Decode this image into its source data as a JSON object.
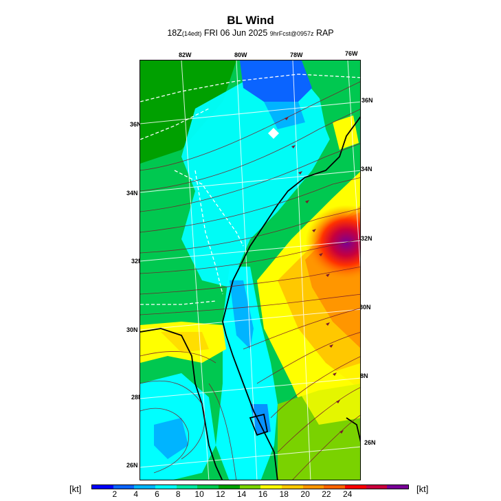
{
  "header": {
    "title": "BL Wind",
    "subtitle_main": "18Z",
    "subtitle_edt": "(14edt)",
    "subtitle_date": " FRI 06 Jun 2025 ",
    "subtitle_fcst": "9hrFcst@0957z",
    "subtitle_model": " RAP"
  },
  "lon_labels": [
    "82W",
    "80W",
    "78W",
    "76W"
  ],
  "lat_labels_left": [
    "36N",
    "34N",
    "32N",
    "30N",
    "28N",
    "26N"
  ],
  "lat_labels_right": [
    "36N",
    "34N",
    "32N",
    "30N",
    "28N",
    "26N"
  ],
  "colorbar": {
    "unit_left": "[kt]",
    "unit_right": "[kt]",
    "ticks": [
      "2",
      "4",
      "6",
      "8",
      "10",
      "12",
      "14",
      "16",
      "18",
      "20",
      "22",
      "24"
    ],
    "colors": [
      "#0000ff",
      "#0a64ff",
      "#00b4ff",
      "#00ffff",
      "#00e6a0",
      "#00c850",
      "#00a000",
      "#7ad200",
      "#ffff00",
      "#ffc800",
      "#ff9600",
      "#ff6400",
      "#ff0000",
      "#c8003c",
      "#780096"
    ]
  },
  "map": {
    "variable": "boundary-layer wind speed",
    "units": "kt",
    "region": "Southeast US / Florida / Atlantic coast"
  }
}
